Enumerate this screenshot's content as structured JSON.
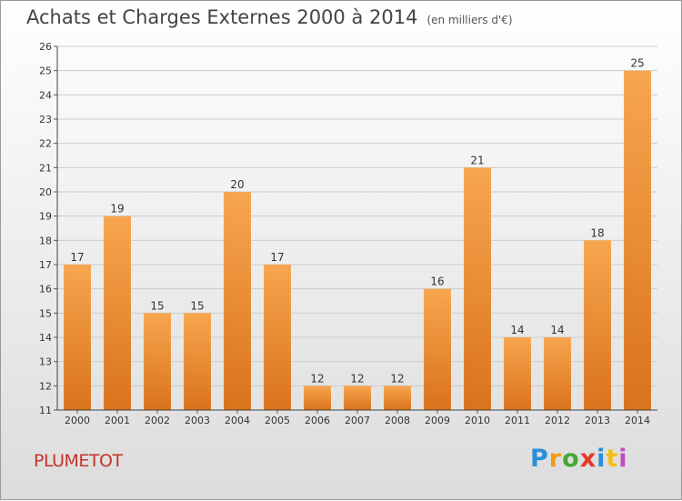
{
  "header": {
    "title": "Achats et Charges Externes 2000 à 2014",
    "subtitle": "(en milliers d'€)"
  },
  "footer": {
    "place": "PLUMETOT",
    "brand_letters": [
      "P",
      "r",
      "o",
      "x",
      "i",
      "t",
      "i"
    ]
  },
  "colors": {
    "bar_light": "#f7a64f",
    "bar_dark": "#d9731c",
    "grid": "#cccccc",
    "place": "#c4342a"
  },
  "chart_data": {
    "type": "bar",
    "title": "Achats et Charges Externes 2000 à 2014",
    "subtitle": "(en milliers d'€)",
    "categories": [
      "2000",
      "2001",
      "2002",
      "2003",
      "2004",
      "2005",
      "2006",
      "2007",
      "2008",
      "2009",
      "2010",
      "2011",
      "2012",
      "2013",
      "2014"
    ],
    "values": [
      17,
      19,
      15,
      15,
      20,
      17,
      12,
      12,
      12,
      16,
      21,
      14,
      14,
      18,
      25
    ],
    "ylim": [
      11,
      26
    ],
    "yticks": [
      11,
      12,
      13,
      14,
      15,
      16,
      17,
      18,
      19,
      20,
      21,
      22,
      23,
      24,
      25,
      26
    ],
    "grid": true,
    "data_labels": true
  }
}
